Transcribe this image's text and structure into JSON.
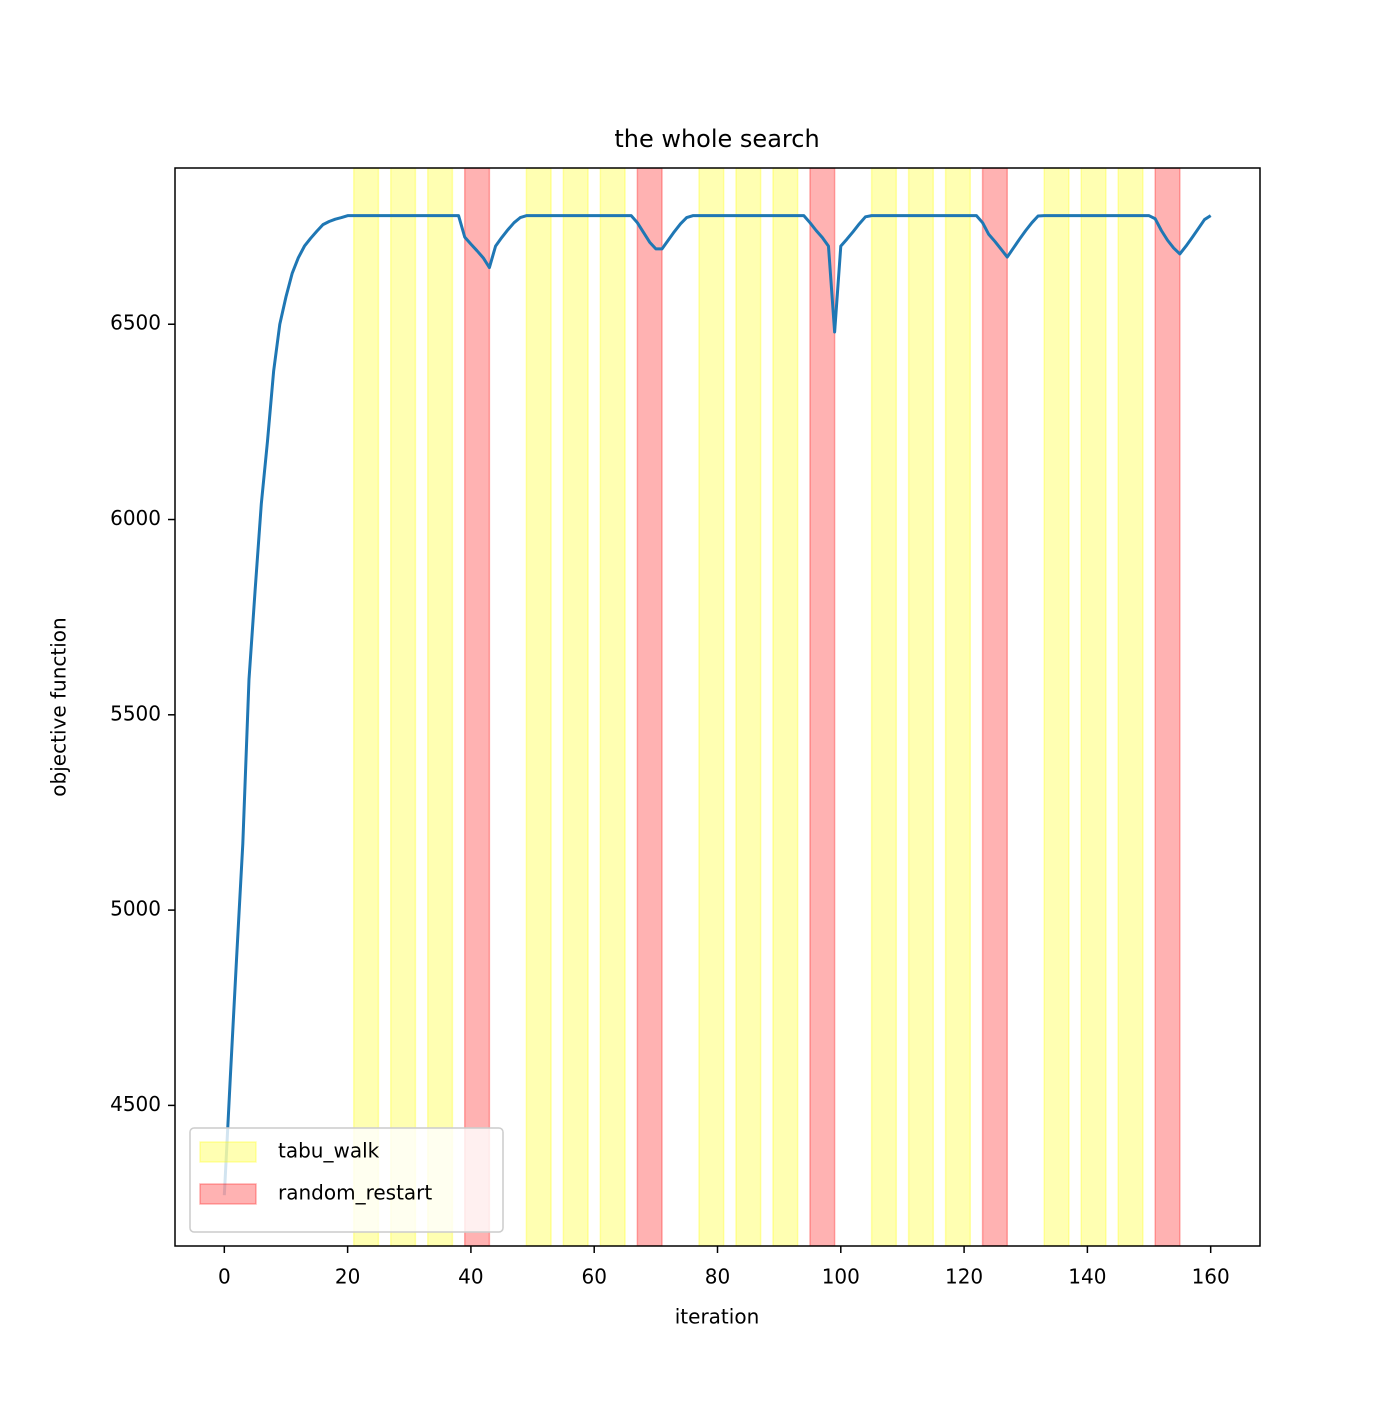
{
  "chart_data": {
    "type": "line",
    "title": "the whole search",
    "xlabel": "iteration",
    "ylabel": "objective function",
    "x": [
      0,
      1,
      2,
      3,
      4,
      5,
      6,
      7,
      8,
      9,
      10,
      11,
      12,
      13,
      14,
      15,
      16,
      17,
      18,
      19,
      20,
      21,
      22,
      23,
      24,
      25,
      26,
      27,
      28,
      29,
      30,
      31,
      32,
      33,
      34,
      35,
      36,
      37,
      38,
      39,
      40,
      41,
      42,
      43,
      44,
      45,
      46,
      47,
      48,
      49,
      50,
      51,
      52,
      53,
      54,
      55,
      56,
      57,
      58,
      59,
      60,
      61,
      62,
      63,
      64,
      65,
      66,
      67,
      68,
      69,
      70,
      71,
      72,
      73,
      74,
      75,
      76,
      77,
      78,
      79,
      80,
      81,
      82,
      83,
      84,
      85,
      86,
      87,
      88,
      89,
      90,
      91,
      92,
      93,
      94,
      95,
      96,
      97,
      98,
      99,
      100,
      101,
      102,
      103,
      104,
      105,
      106,
      107,
      108,
      109,
      110,
      111,
      112,
      113,
      114,
      115,
      116,
      117,
      118,
      119,
      120,
      121,
      122,
      123,
      124,
      125,
      126,
      127,
      128,
      129,
      130,
      131,
      132,
      133,
      134,
      135,
      136,
      137,
      138,
      139,
      140,
      141,
      142,
      143,
      144,
      145,
      146,
      147,
      148,
      149,
      150,
      151,
      152,
      153,
      154,
      155,
      156,
      157,
      158,
      159,
      160
    ],
    "series": [
      {
        "color": "#1f77b4",
        "values": [
          4270,
          4580,
          4880,
          5170,
          5590,
          5820,
          6040,
          6200,
          6380,
          6500,
          6570,
          6630,
          6670,
          6700,
          6720,
          6738,
          6755,
          6763,
          6769,
          6773,
          6778,
          6778,
          6778,
          6778,
          6778,
          6778,
          6778,
          6778,
          6778,
          6778,
          6778,
          6778,
          6778,
          6778,
          6778,
          6778,
          6778,
          6778,
          6778,
          6723,
          6705,
          6688,
          6670,
          6645,
          6700,
          6722,
          6742,
          6760,
          6773,
          6778,
          6778,
          6778,
          6778,
          6778,
          6778,
          6778,
          6778,
          6778,
          6778,
          6778,
          6778,
          6778,
          6778,
          6778,
          6778,
          6778,
          6778,
          6760,
          6735,
          6710,
          6693,
          6693,
          6715,
          6737,
          6757,
          6773,
          6778,
          6778,
          6778,
          6778,
          6778,
          6778,
          6778,
          6778,
          6778,
          6778,
          6778,
          6778,
          6778,
          6778,
          6778,
          6778,
          6778,
          6778,
          6778,
          6760,
          6740,
          6722,
          6700,
          6480,
          6700,
          6718,
          6737,
          6757,
          6775,
          6778,
          6778,
          6778,
          6778,
          6778,
          6778,
          6778,
          6778,
          6778,
          6778,
          6778,
          6778,
          6778,
          6778,
          6778,
          6778,
          6778,
          6778,
          6760,
          6730,
          6712,
          6692,
          6672,
          6695,
          6718,
          6740,
          6760,
          6777,
          6778,
          6778,
          6778,
          6778,
          6778,
          6778,
          6778,
          6778,
          6778,
          6778,
          6778,
          6778,
          6778,
          6778,
          6778,
          6778,
          6778,
          6778,
          6770,
          6740,
          6715,
          6695,
          6680,
          6700,
          6722,
          6745,
          6768,
          6778
        ]
      }
    ],
    "spans": [
      {
        "name": "tabu_walk",
        "color": "#ffff00",
        "alpha": 0.3,
        "ranges": [
          [
            21,
            25
          ],
          [
            27,
            31
          ],
          [
            33,
            37
          ],
          [
            49,
            53
          ],
          [
            55,
            59
          ],
          [
            61,
            65
          ],
          [
            77,
            81
          ],
          [
            83,
            87
          ],
          [
            89,
            93
          ],
          [
            105,
            109
          ],
          [
            111,
            115
          ],
          [
            117,
            121
          ],
          [
            133,
            137
          ],
          [
            139,
            143
          ],
          [
            145,
            149
          ]
        ]
      },
      {
        "name": "random_restart",
        "color": "#ff0000",
        "alpha": 0.3,
        "ranges": [
          [
            39,
            43
          ],
          [
            67,
            71
          ],
          [
            95,
            99
          ],
          [
            123,
            127
          ],
          [
            151,
            155
          ]
        ]
      }
    ],
    "xlim": [
      -8,
      168
    ],
    "ylim": [
      4140,
      6900
    ],
    "xticks": [
      0,
      20,
      40,
      60,
      80,
      100,
      120,
      140,
      160
    ],
    "yticks": [
      4500,
      5000,
      5500,
      6000,
      6500
    ],
    "legend": "lower left"
  }
}
